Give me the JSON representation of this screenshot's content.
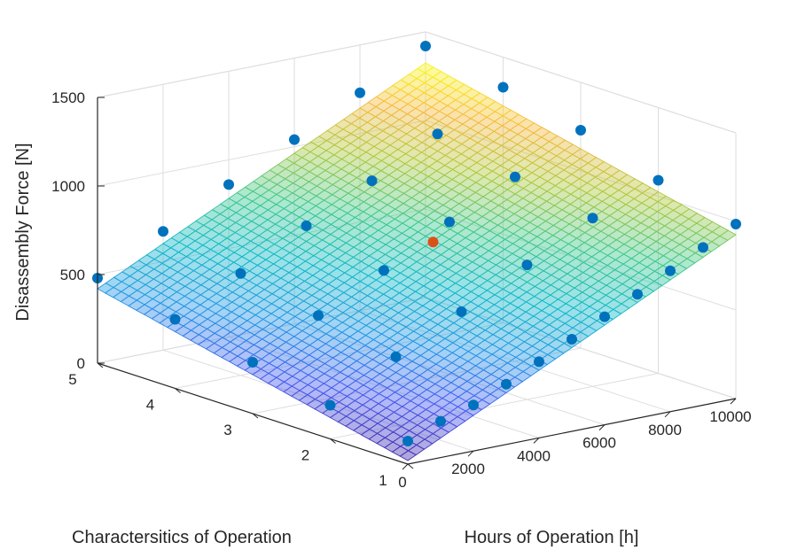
{
  "chart_data": {
    "type": "surface3d",
    "title": "",
    "xlabel": "Hours of Operation [h]",
    "ylabel": "Charactersitics of Operation",
    "zlabel": "Disassembly Force [N]",
    "xlim": [
      0,
      10000
    ],
    "ylim": [
      1,
      5
    ],
    "zlim": [
      0,
      1500
    ],
    "xticks": [
      "0",
      "2000",
      "4000",
      "6000",
      "8000",
      "10000"
    ],
    "yticks": [
      "1",
      "2",
      "3",
      "4",
      "5"
    ],
    "zticks": [
      "0",
      "500",
      "1000",
      "1500"
    ],
    "grid": true,
    "surface": {
      "model": "z = c0 + cx*x + cy*y",
      "c0": -80,
      "cx": 0.0905,
      "cy": 100,
      "colormap": "parula"
    },
    "series": [
      {
        "type": "scatter",
        "color": "#0072BD",
        "points": [
          {
            "x": 0,
            "y": 1,
            "z": 130
          },
          {
            "x": 1000,
            "y": 1,
            "z": 205
          },
          {
            "x": 2000,
            "y": 1,
            "z": 260
          },
          {
            "x": 3000,
            "y": 1,
            "z": 340
          },
          {
            "x": 4000,
            "y": 1,
            "z": 430
          },
          {
            "x": 5000,
            "y": 1,
            "z": 520
          },
          {
            "x": 6000,
            "y": 1,
            "z": 610
          },
          {
            "x": 7000,
            "y": 1,
            "z": 700
          },
          {
            "x": 8000,
            "y": 1,
            "z": 795
          },
          {
            "x": 9000,
            "y": 1,
            "z": 890
          },
          {
            "x": 10000,
            "y": 1,
            "z": 985
          },
          {
            "x": 0,
            "y": 2,
            "z": 190
          },
          {
            "x": 2000,
            "y": 2,
            "z": 390
          },
          {
            "x": 4000,
            "y": 2,
            "z": 570
          },
          {
            "x": 6000,
            "y": 2,
            "z": 760
          },
          {
            "x": 8000,
            "y": 2,
            "z": 950
          },
          {
            "x": 10000,
            "y": 2,
            "z": 1090
          },
          {
            "x": 0,
            "y": 3,
            "z": 290
          },
          {
            "x": 2000,
            "y": 3,
            "z": 480
          },
          {
            "x": 4000,
            "y": 3,
            "z": 660
          },
          {
            "x": 6000,
            "y": 3,
            "z": 860
          },
          {
            "x": 8000,
            "y": 3,
            "z": 1040
          },
          {
            "x": 10000,
            "y": 3,
            "z": 1230
          },
          {
            "x": 0,
            "y": 4,
            "z": 390
          },
          {
            "x": 2000,
            "y": 4,
            "z": 575
          },
          {
            "x": 4000,
            "y": 4,
            "z": 770
          },
          {
            "x": 6000,
            "y": 4,
            "z": 950
          },
          {
            "x": 8000,
            "y": 4,
            "z": 1140
          },
          {
            "x": 10000,
            "y": 4,
            "z": 1330
          },
          {
            "x": 0,
            "y": 5,
            "z": 480
          },
          {
            "x": 2000,
            "y": 5,
            "z": 670
          },
          {
            "x": 4000,
            "y": 5,
            "z": 860
          },
          {
            "x": 6000,
            "y": 5,
            "z": 1040
          },
          {
            "x": 8000,
            "y": 5,
            "z": 1230
          },
          {
            "x": 10000,
            "y": 5,
            "z": 1420
          }
        ]
      },
      {
        "type": "scatter",
        "color": "#D95319",
        "points": [
          {
            "x": 5500,
            "y": 3,
            "z": 765
          }
        ]
      }
    ]
  }
}
